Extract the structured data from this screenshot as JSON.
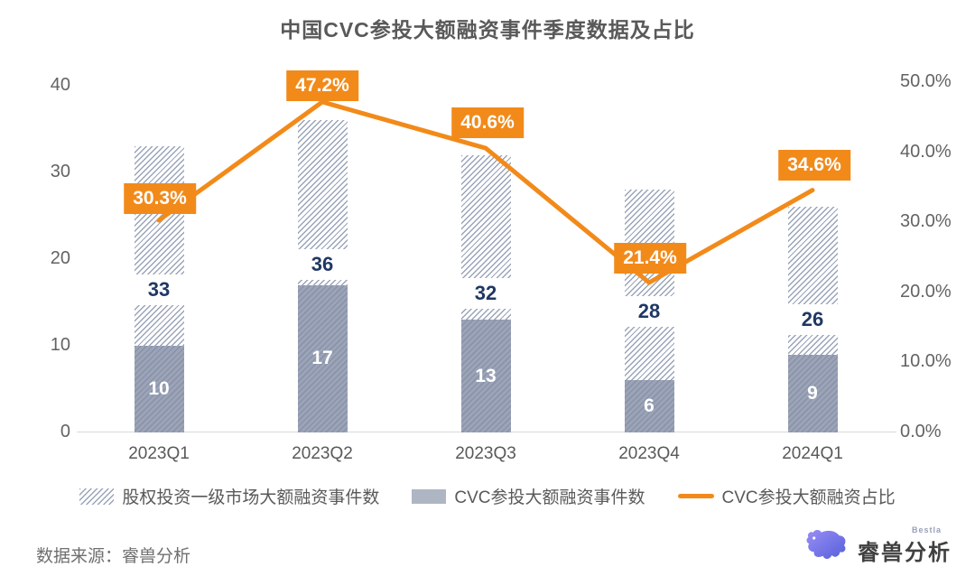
{
  "title": "中国CVC参投大额融资事件季度数据及占比",
  "chart_data": {
    "type": "bar+line combo",
    "categories": [
      "2023Q1",
      "2023Q2",
      "2023Q3",
      "2023Q4",
      "2024Q1"
    ],
    "series": [
      {
        "name": "股权投资一级市场大额融资事件数",
        "type": "bar",
        "style": "hatched",
        "values": [
          33,
          36,
          32,
          28,
          26
        ]
      },
      {
        "name": "CVC参投大额融资事件数",
        "type": "bar",
        "style": "solid",
        "values": [
          10,
          17,
          13,
          6,
          9
        ]
      },
      {
        "name": "CVC参投大额融资占比",
        "type": "line",
        "values": [
          30.3,
          47.2,
          40.6,
          21.4,
          34.6
        ],
        "labels": [
          "30.3%",
          "47.2%",
          "40.6%",
          "21.4%",
          "34.6%"
        ]
      }
    ],
    "left_axis": {
      "tick_labels": [
        "0",
        "10",
        "20",
        "30",
        "40"
      ],
      "tick_values": [
        0,
        10,
        20,
        30,
        40
      ],
      "range": [
        0,
        40
      ]
    },
    "right_axis": {
      "tick_labels": [
        "0.0%",
        "10.0%",
        "20.0%",
        "30.0%",
        "40.0%",
        "50.0%"
      ],
      "tick_values": [
        0,
        10,
        20,
        30,
        40,
        50
      ],
      "range": [
        0,
        50
      ]
    },
    "grid": "baseline-only",
    "legend_position": "bottom",
    "colors": {
      "accent_orange": "#f28a1a",
      "navy_label": "#1f3864",
      "solid_bar": "#9ca4b7",
      "hatch_line": "#9aa4b8",
      "axis_text": "#595959",
      "baseline": "#d9d9d9"
    }
  },
  "footer": {
    "source": "数据来源：睿兽分析"
  },
  "brand": {
    "name": "睿兽分析",
    "sub": "Bestla"
  }
}
